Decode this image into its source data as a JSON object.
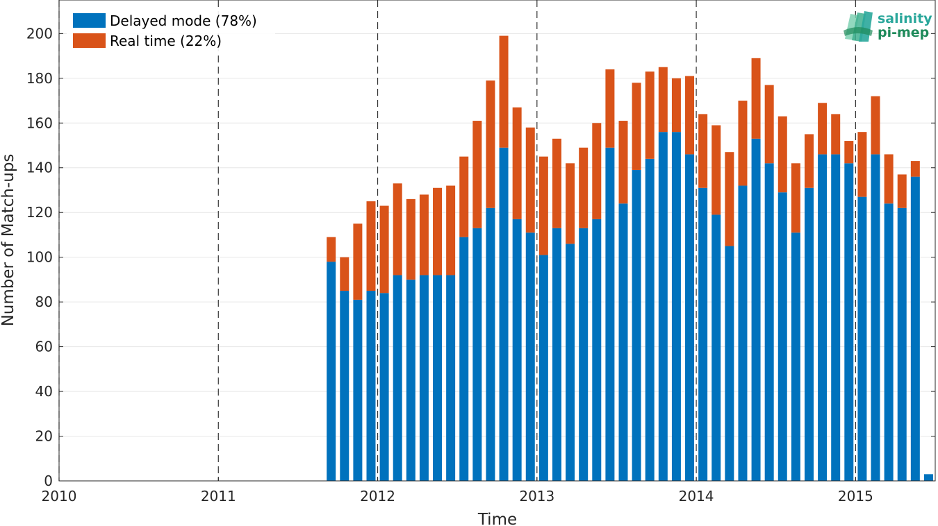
{
  "chart_data": {
    "type": "bar",
    "stacked": true,
    "xlabel": "Time",
    "ylabel": "Number of Match-ups",
    "xlim": [
      "2010-01-01",
      "2015-07-01"
    ],
    "ylim": [
      0,
      215
    ],
    "x_tick_labels": [
      "2010",
      "2011",
      "2012",
      "2013",
      "2014",
      "2015"
    ],
    "y_ticks": [
      0,
      20,
      40,
      60,
      80,
      100,
      120,
      140,
      160,
      180,
      200
    ],
    "year_divider_lines": [
      "2011-01-01",
      "2012-01-01",
      "2013-01-01",
      "2014-01-01",
      "2015-01-01"
    ],
    "grid": true,
    "legend_position": "top-left",
    "categories": [
      "2011-09",
      "2011-10",
      "2011-11",
      "2011-12",
      "2012-01",
      "2012-02",
      "2012-03",
      "2012-04",
      "2012-05",
      "2012-06",
      "2012-07",
      "2012-08",
      "2012-09",
      "2012-10",
      "2012-11",
      "2012-12",
      "2013-01",
      "2013-02",
      "2013-03",
      "2013-04",
      "2013-05",
      "2013-06",
      "2013-07",
      "2013-08",
      "2013-09",
      "2013-10",
      "2013-11",
      "2013-12",
      "2014-01",
      "2014-02",
      "2014-03",
      "2014-04",
      "2014-05",
      "2014-06",
      "2014-07",
      "2014-08",
      "2014-09",
      "2014-10",
      "2014-11",
      "2014-12",
      "2015-01",
      "2015-02",
      "2015-03",
      "2015-04",
      "2015-05",
      "2015-06"
    ],
    "series": [
      {
        "name": "Delayed mode (78%)",
        "color": "#0072bd",
        "values": [
          98,
          85,
          81,
          85,
          84,
          92,
          90,
          92,
          92,
          92,
          109,
          113,
          122,
          149,
          117,
          111,
          101,
          113,
          106,
          113,
          117,
          149,
          124,
          139,
          144,
          156,
          156,
          146,
          131,
          119,
          105,
          132,
          153,
          142,
          129,
          111,
          131,
          146,
          146,
          142,
          127,
          146,
          124,
          122,
          136,
          3
        ]
      },
      {
        "name": "Real time (22%)",
        "color": "#d95319",
        "values": [
          11,
          15,
          34,
          40,
          39,
          41,
          36,
          36,
          39,
          40,
          36,
          48,
          57,
          50,
          50,
          47,
          44,
          40,
          36,
          36,
          43,
          35,
          37,
          39,
          39,
          29,
          24,
          35,
          33,
          40,
          42,
          38,
          36,
          35,
          34,
          31,
          24,
          23,
          18,
          10,
          29,
          26,
          22,
          15,
          7,
          0
        ]
      }
    ]
  },
  "logo": {
    "line1": "salinity",
    "line2": "pi-mep",
    "color1": "#2aa79b",
    "color2": "#1e8a5a"
  }
}
